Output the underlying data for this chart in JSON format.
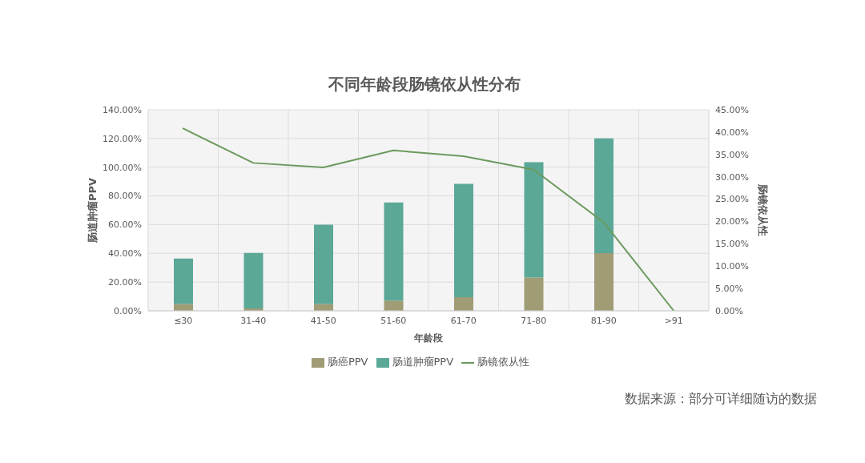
{
  "chart_data": {
    "type": "bar",
    "title": "不同年龄段肠镜依从性分布",
    "xlabel": "年龄段",
    "ylabel": "肠道肿瘤PPV",
    "y2label": "肠镜依从性",
    "categories": [
      "≤30",
      "31-40",
      "41-50",
      "51-60",
      "61-70",
      "71-80",
      "81-90",
      ">91"
    ],
    "stacked": true,
    "series": [
      {
        "name": "肠癌PPV",
        "color": "#a09c76",
        "values": [
          4.8,
          1.7,
          4.8,
          7.1,
          9.5,
          23.2,
          40.1,
          null
        ]
      },
      {
        "name": "肠道肿瘤PPV",
        "color": "#5ba897",
        "values": [
          31.6,
          38.6,
          55.2,
          68.3,
          78.9,
          80.2,
          79.9,
          null
        ]
      },
      {
        "name": "肠镜依从性",
        "type": "line",
        "axis": "y2",
        "color": "#6b9a5e",
        "values": [
          40.8,
          33.1,
          32.1,
          35.9,
          34.6,
          31.6,
          19.8,
          0
        ]
      }
    ],
    "ylim": [
      0,
      140
    ],
    "yticks": [
      {
        "value": 0,
        "label": "0.00%"
      },
      {
        "value": 20,
        "label": "20.00%"
      },
      {
        "value": 40,
        "label": "40.00%"
      },
      {
        "value": 60,
        "label": "60.00%"
      },
      {
        "value": 80,
        "label": "80.00%"
      },
      {
        "value": 100,
        "label": "100.00%"
      },
      {
        "value": 120,
        "label": "120.00%"
      },
      {
        "value": 140,
        "label": "140.00%"
      }
    ],
    "y2lim": [
      0,
      45
    ],
    "y2ticks": [
      {
        "value": 0,
        "label": "0.00%"
      },
      {
        "value": 5,
        "label": "5.00%"
      },
      {
        "value": 10,
        "label": "10.00%"
      },
      {
        "value": 15,
        "label": "15.00%"
      },
      {
        "value": 20,
        "label": "20.00%"
      },
      {
        "value": 25,
        "label": "25.00%"
      },
      {
        "value": 30,
        "label": "30.00%"
      },
      {
        "value": 35,
        "label": "35.00%"
      },
      {
        "value": 40,
        "label": "40.00%"
      },
      {
        "value": 45,
        "label": "45.00%"
      }
    ],
    "grid": true,
    "legend": "bottom",
    "marker": "none",
    "annotations": [
      "数据来源：部分可详细随访的数据"
    ]
  }
}
